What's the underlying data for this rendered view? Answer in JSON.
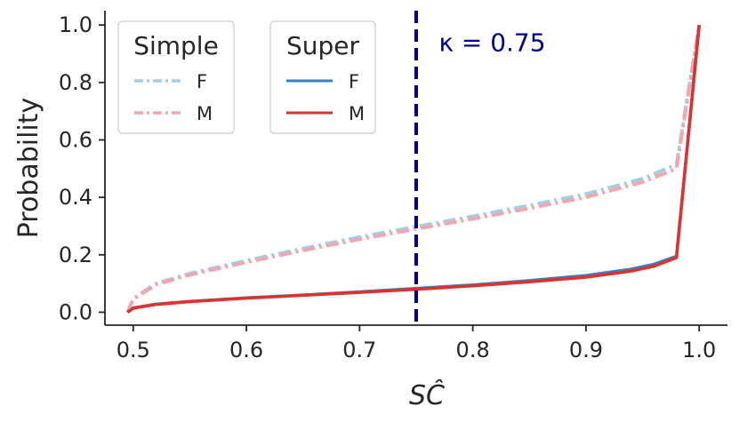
{
  "chart_data": {
    "type": "line",
    "title": "",
    "xlabel": "SĈ",
    "ylabel": "Probability",
    "xlim": [
      0.475,
      1.025
    ],
    "ylim": [
      -0.045,
      1.05
    ],
    "xticks": [
      0.5,
      0.6,
      0.7,
      0.8,
      0.9,
      1.0
    ],
    "xtick_labels": [
      "0.5",
      "0.6",
      "0.7",
      "0.8",
      "0.9",
      "1.0"
    ],
    "yticks": [
      0.0,
      0.2,
      0.4,
      0.6,
      0.8,
      1.0
    ],
    "ytick_labels": [
      "0.0",
      "0.2",
      "0.4",
      "0.6",
      "0.8",
      "1.0"
    ],
    "grid": false,
    "vline": {
      "x": 0.75,
      "color": "#00008b",
      "style": "dashed"
    },
    "annotation": {
      "text": "κ = 0.75",
      "x": 0.77,
      "y": 0.94
    },
    "legends": [
      {
        "title": "Simple",
        "placement": "top-left",
        "entries": [
          "F",
          "M"
        ]
      },
      {
        "title": "Super",
        "placement": "top-left",
        "entries": [
          "F",
          "M"
        ]
      }
    ],
    "series": [
      {
        "name": "F",
        "group": "Simple",
        "color": "#a6cee3",
        "style": "dashdot",
        "x": [
          0.495,
          0.5,
          0.52,
          0.55,
          0.6,
          0.65,
          0.7,
          0.75,
          0.8,
          0.85,
          0.9,
          0.95,
          0.98,
          1.0
        ],
        "y": [
          0.0,
          0.048,
          0.1,
          0.135,
          0.18,
          0.222,
          0.262,
          0.298,
          0.334,
          0.372,
          0.412,
          0.465,
          0.515,
          1.0
        ]
      },
      {
        "name": "M",
        "group": "Simple",
        "color": "#f4a6ae",
        "style": "dashdot",
        "x": [
          0.495,
          0.5,
          0.52,
          0.55,
          0.6,
          0.65,
          0.7,
          0.75,
          0.8,
          0.85,
          0.9,
          0.95,
          0.98,
          1.0
        ],
        "y": [
          0.0,
          0.045,
          0.096,
          0.13,
          0.174,
          0.215,
          0.254,
          0.29,
          0.325,
          0.362,
          0.4,
          0.453,
          0.5,
          1.0
        ]
      },
      {
        "name": "F",
        "group": "Super",
        "color": "#3a7fc2",
        "style": "solid",
        "x": [
          0.495,
          0.5,
          0.52,
          0.55,
          0.6,
          0.65,
          0.7,
          0.75,
          0.8,
          0.85,
          0.9,
          0.94,
          0.96,
          0.98,
          1.0
        ],
        "y": [
          0.0,
          0.015,
          0.028,
          0.038,
          0.05,
          0.06,
          0.071,
          0.083,
          0.095,
          0.11,
          0.128,
          0.15,
          0.167,
          0.195,
          1.0
        ]
      },
      {
        "name": "M",
        "group": "Super",
        "color": "#e0312f",
        "style": "solid",
        "x": [
          0.495,
          0.5,
          0.52,
          0.55,
          0.6,
          0.65,
          0.7,
          0.75,
          0.8,
          0.85,
          0.9,
          0.94,
          0.96,
          0.98,
          1.0
        ],
        "y": [
          0.0,
          0.014,
          0.027,
          0.037,
          0.049,
          0.059,
          0.069,
          0.08,
          0.092,
          0.106,
          0.122,
          0.143,
          0.16,
          0.19,
          1.0
        ]
      }
    ]
  }
}
